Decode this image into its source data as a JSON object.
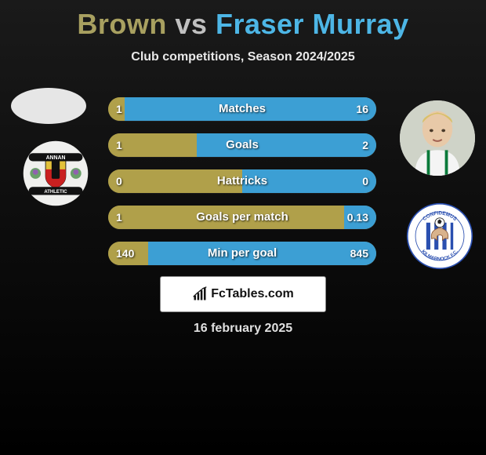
{
  "title": {
    "player1": "Brown",
    "vs": "vs",
    "player2": "Fraser Murray"
  },
  "subtitle": "Club competitions, Season 2024/2025",
  "colors": {
    "player1": "#a8a060",
    "player1_bar": "#b0a04a",
    "player2": "#4db6e6",
    "player2_bar": "#3c9fd4",
    "bar_bg": "#a89648"
  },
  "stats": [
    {
      "label": "Matches",
      "left_val": "1",
      "right_val": "16",
      "left_pct": 6,
      "right_pct": 94
    },
    {
      "label": "Goals",
      "left_val": "1",
      "right_val": "2",
      "left_pct": 33,
      "right_pct": 67
    },
    {
      "label": "Hattricks",
      "left_val": "0",
      "right_val": "0",
      "left_pct": 50,
      "right_pct": 50
    },
    {
      "label": "Goals per match",
      "left_val": "1",
      "right_val": "0.13",
      "left_pct": 88,
      "right_pct": 12
    },
    {
      "label": "Min per goal",
      "left_val": "140",
      "right_val": "845",
      "left_pct": 15,
      "right_pct": 85
    }
  ],
  "logo_text": "FcTables.com",
  "date": "16 february 2025",
  "badges": {
    "left": {
      "bg": "#f0f0ee",
      "shield_top": "#e3c23a",
      "shield_bottom": "#c92020",
      "band": "#111111",
      "band_text": "ANNAN",
      "band_text2": "ATHLETIC",
      "thistle": "#6aa06a"
    },
    "right": {
      "bg": "#ffffff",
      "stripes": [
        "#2a4fb0",
        "#ffffff"
      ],
      "ring_text_top": "CONFIDEMUS",
      "ring_text_bottom": "KILMARNOCK F.C.",
      "hand": "#d9b38c",
      "ball": "#222222"
    }
  }
}
